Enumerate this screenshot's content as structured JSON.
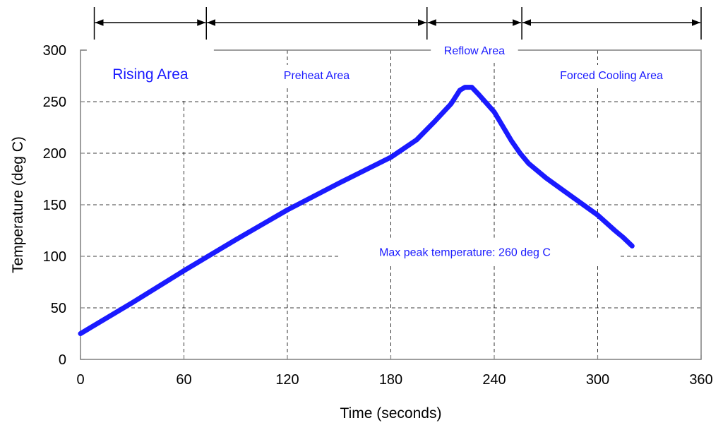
{
  "colors": {
    "series": "#1a1aff",
    "label": "#1a1aff",
    "grid": "#000000",
    "axis": "#7f7f7f"
  },
  "chart_data": {
    "type": "line",
    "title": "",
    "xlabel": "Time (seconds)",
    "ylabel": "Temperature (deg C)",
    "xlim": [
      0,
      360
    ],
    "ylim": [
      0,
      300
    ],
    "xticks": [
      "0",
      "60",
      "120",
      "180",
      "240",
      "300",
      "360"
    ],
    "yticks": [
      "0",
      "50",
      "100",
      "150",
      "200",
      "250",
      "300"
    ],
    "grid": true,
    "series": [
      {
        "x": [
          0,
          30,
          60,
          75,
          90,
          120,
          150,
          180,
          195,
          205,
          215,
          220,
          223,
          227,
          231,
          240,
          250,
          255,
          260,
          270,
          280,
          290,
          300,
          310,
          315,
          320
        ],
        "y": [
          25,
          55,
          86,
          101,
          116,
          145,
          171,
          196,
          213,
          230,
          248,
          261,
          264,
          264,
          257,
          240,
          212,
          200,
          190,
          176,
          164,
          152,
          140,
          125,
          118,
          110
        ]
      }
    ],
    "regions": [
      {
        "label": "Rising Area",
        "x": [
          8,
          73
        ]
      },
      {
        "label": "Preheat Area",
        "x": [
          73,
          201
        ]
      },
      {
        "label": "Reflow Area",
        "x": [
          201,
          256
        ]
      },
      {
        "label": "Forced Cooling Area",
        "x": [
          256,
          360
        ]
      }
    ],
    "annotations": [
      {
        "text": "Max peak temperature: 260 deg C",
        "x": 223,
        "y": 103
      }
    ]
  }
}
